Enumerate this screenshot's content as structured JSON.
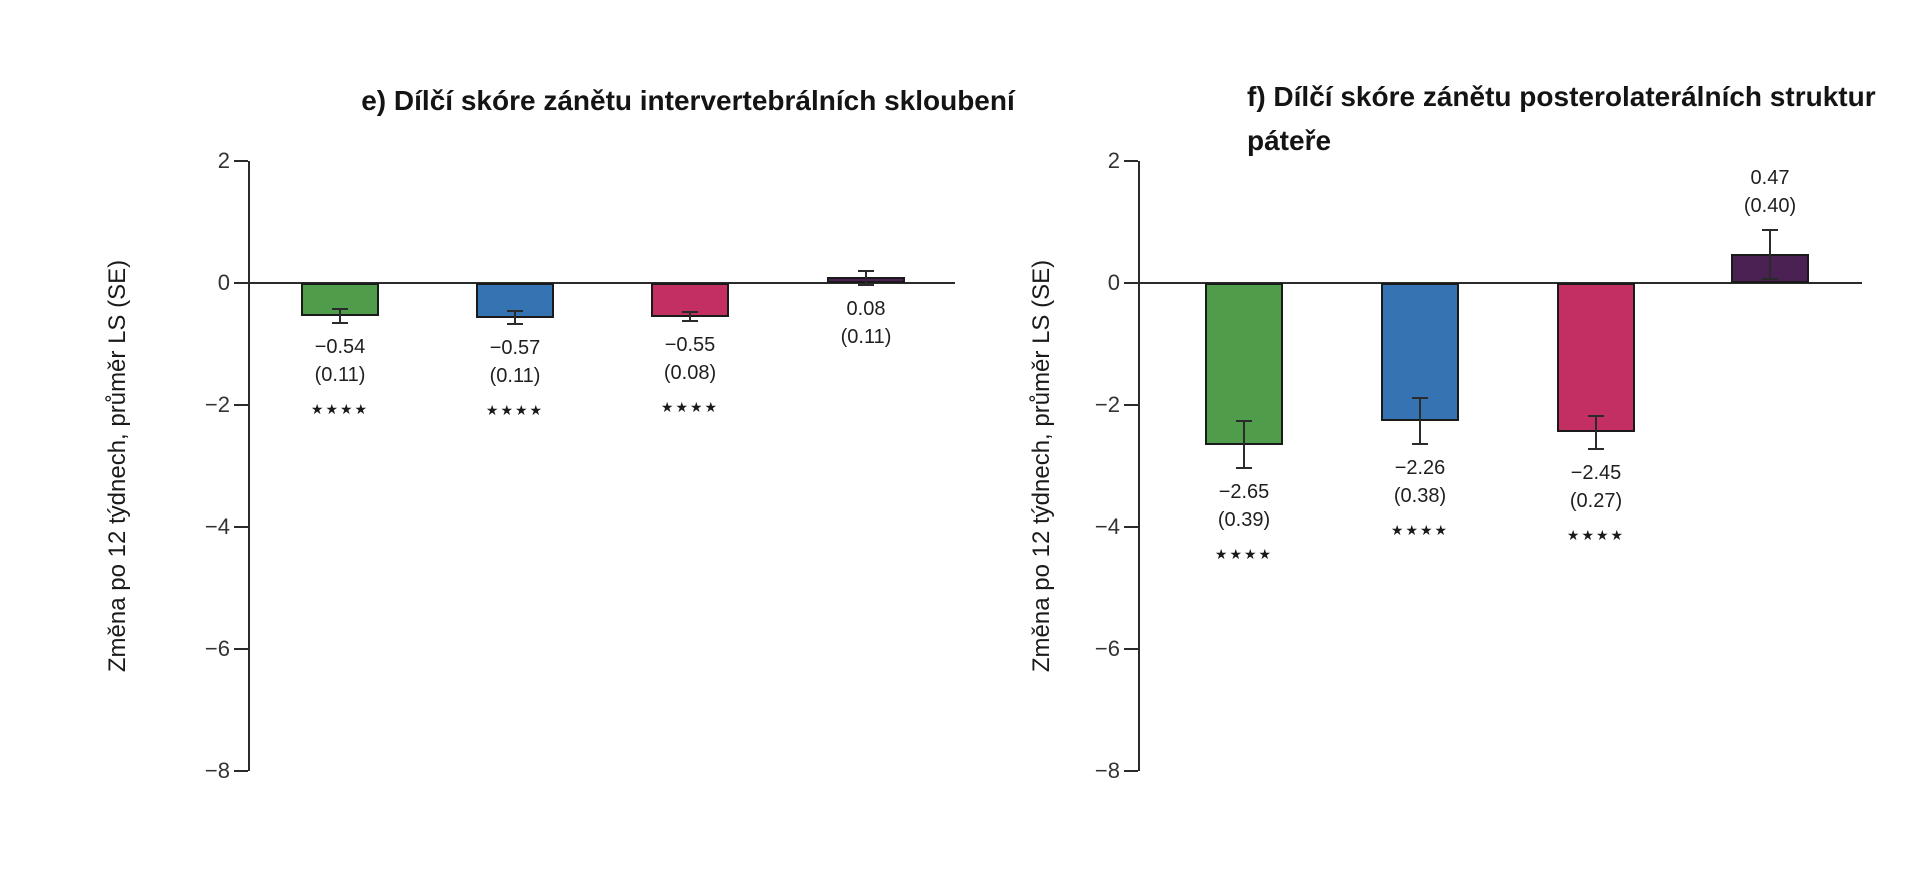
{
  "chart_data": [
    {
      "type": "bar",
      "panel": "e",
      "title": "e) Dílčí skóre zánětu intervertebrálních skloubení",
      "ylabel": "Změna po 12 týdnech, průměr LS (SE)",
      "ylim": [
        -8,
        2
      ],
      "yticks": [
        2,
        0,
        -2,
        -4,
        -6,
        -8
      ],
      "grid": false,
      "legend": "none",
      "bars": [
        {
          "value": -0.54,
          "se": 0.11,
          "value_label": "−0.54",
          "se_label": "(0.11)",
          "significance": "****",
          "color": "#4f9d4a",
          "label_side": "below"
        },
        {
          "value": -0.57,
          "se": 0.11,
          "value_label": "−0.57",
          "se_label": "(0.11)",
          "significance": "****",
          "color": "#3673b2",
          "label_side": "below"
        },
        {
          "value": -0.55,
          "se": 0.08,
          "value_label": "−0.55",
          "se_label": "(0.08)",
          "significance": "****",
          "color": "#c42f63",
          "label_side": "below"
        },
        {
          "value": 0.08,
          "se": 0.11,
          "value_label": "0.08",
          "se_label": "(0.11)",
          "significance": "",
          "color": "#4a2152",
          "label_side": "below"
        }
      ]
    },
    {
      "type": "bar",
      "panel": "f",
      "title": "f) Dílčí skóre zánětu posterolaterálních struktur páteře",
      "ylabel": "Změna po 12 týdnech, průměr LS (SE)",
      "ylim": [
        -8,
        2
      ],
      "yticks": [
        2,
        0,
        -2,
        -4,
        -6,
        -8
      ],
      "grid": false,
      "legend": "none",
      "bars": [
        {
          "value": -2.65,
          "se": 0.39,
          "value_label": "−2.65",
          "se_label": "(0.39)",
          "significance": "****",
          "color": "#4f9d4a",
          "label_side": "below"
        },
        {
          "value": -2.26,
          "se": 0.38,
          "value_label": "−2.26",
          "se_label": "(0.38)",
          "significance": "****",
          "color": "#3673b2",
          "label_side": "below"
        },
        {
          "value": -2.45,
          "se": 0.27,
          "value_label": "−2.45",
          "se_label": "(0.27)",
          "significance": "****",
          "color": "#c42f63",
          "label_side": "below"
        },
        {
          "value": 0.47,
          "se": 0.4,
          "value_label": "0.47",
          "se_label": "(0.40)",
          "significance": "",
          "color": "#4a2152",
          "label_side": "above"
        }
      ]
    }
  ]
}
